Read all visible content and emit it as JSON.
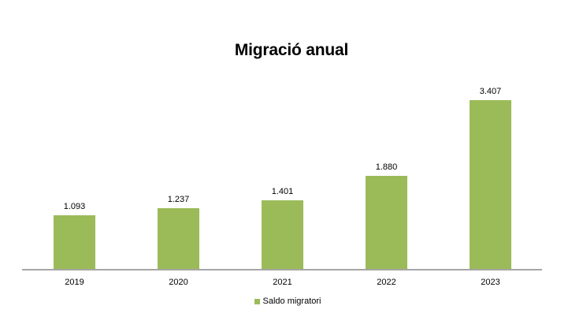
{
  "chart_data": {
    "type": "bar",
    "title": "Migració anual",
    "categories": [
      "2019",
      "2020",
      "2021",
      "2022",
      "2023"
    ],
    "series": [
      {
        "name": "Saldo migratori",
        "values": [
          1093,
          1237,
          1401,
          1880,
          3407
        ],
        "color": "#9BBB59"
      }
    ],
    "data_labels": [
      "1.093",
      "1.237",
      "1.401",
      "1.880",
      "3.407"
    ],
    "xlabel": "",
    "ylabel": "",
    "y_axis_visible": false,
    "grid": false,
    "legend_position": "bottom"
  },
  "legend": {
    "label": "Saldo migratori"
  }
}
